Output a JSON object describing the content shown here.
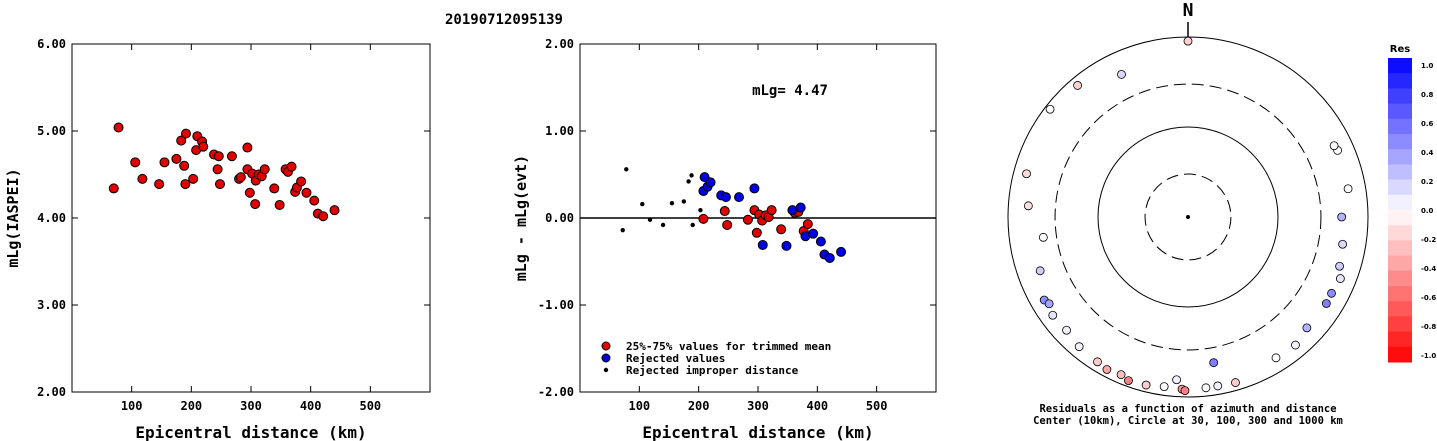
{
  "event_id": "20190712095139",
  "chart_data": [
    {
      "type": "scatter",
      "title": "",
      "xlabel": "Epicentral distance (km)",
      "ylabel": "mLg(IASPEI)",
      "xlim": [
        0,
        600
      ],
      "ylim": [
        2.0,
        6.0
      ],
      "xticks": [
        "100",
        "200",
        "300",
        "400",
        "500"
      ],
      "yticks": [
        "2.00",
        "3.00",
        "4.00",
        "5.00",
        "6.00"
      ],
      "color": "#e00000",
      "points": [
        [
          70,
          4.34
        ],
        [
          78,
          5.04
        ],
        [
          106,
          4.64
        ],
        [
          118,
          4.45
        ],
        [
          146,
          4.39
        ],
        [
          155,
          4.64
        ],
        [
          175,
          4.68
        ],
        [
          183,
          4.89
        ],
        [
          188,
          4.6
        ],
        [
          190,
          4.39
        ],
        [
          191,
          4.97
        ],
        [
          203,
          4.45
        ],
        [
          208,
          4.78
        ],
        [
          210,
          4.94
        ],
        [
          218,
          4.88
        ],
        [
          220,
          4.82
        ],
        [
          238,
          4.73
        ],
        [
          244,
          4.56
        ],
        [
          246,
          4.71
        ],
        [
          248,
          4.39
        ],
        [
          268,
          4.71
        ],
        [
          280,
          4.45
        ],
        [
          283,
          4.47
        ],
        [
          294,
          4.81
        ],
        [
          294,
          4.56
        ],
        [
          298,
          4.29
        ],
        [
          302,
          4.51
        ],
        [
          307,
          4.16
        ],
        [
          308,
          4.43
        ],
        [
          313,
          4.5
        ],
        [
          318,
          4.48
        ],
        [
          323,
          4.56
        ],
        [
          339,
          4.34
        ],
        [
          348,
          4.15
        ],
        [
          358,
          4.56
        ],
        [
          362,
          4.53
        ],
        [
          368,
          4.59
        ],
        [
          374,
          4.3
        ],
        [
          377,
          4.35
        ],
        [
          384,
          4.42
        ],
        [
          393,
          4.29
        ],
        [
          406,
          4.2
        ],
        [
          412,
          4.05
        ],
        [
          421,
          4.02
        ],
        [
          440,
          4.09
        ]
      ]
    },
    {
      "type": "scatter",
      "title": "",
      "xlabel": "Epicentral distance (km)",
      "ylabel": "mLg - mLg(evt)",
      "xlim": [
        0,
        600
      ],
      "ylim": [
        -2.0,
        2.0
      ],
      "xticks": [
        "100",
        "200",
        "300",
        "400",
        "500"
      ],
      "yticks": [
        "-2.00",
        "-1.00",
        "0.00",
        "1.00",
        "2.00"
      ],
      "annotation": "mLg= 4.47",
      "legend": [
        {
          "label": "25%-75% values for trimmed mean",
          "color": "#e00000"
        },
        {
          "label": "Rejected values",
          "color": "#0000e0"
        },
        {
          "label": "Rejected improper distance",
          "color": "#000000"
        }
      ],
      "series": [
        {
          "name": "25%-75% values for trimmed mean",
          "color": "#e00000",
          "size": 5,
          "points": [
            [
              208,
              -0.01
            ],
            [
              244,
              0.08
            ],
            [
              248,
              -0.08
            ],
            [
              283,
              -0.02
            ],
            [
              294,
              0.09
            ],
            [
              298,
              -0.17
            ],
            [
              302,
              0.04
            ],
            [
              307,
              -0.03
            ],
            [
              313,
              0.03
            ],
            [
              318,
              0.01
            ],
            [
              323,
              0.09
            ],
            [
              339,
              -0.13
            ],
            [
              362,
              0.06
            ],
            [
              368,
              0.07
            ],
            [
              377,
              -0.15
            ],
            [
              384,
              -0.07
            ]
          ]
        },
        {
          "name": "Rejected values",
          "color": "#0000e0",
          "size": 5,
          "points": [
            [
              208,
              0.31
            ],
            [
              210,
              0.47
            ],
            [
              215,
              0.36
            ],
            [
              220,
              0.41
            ],
            [
              238,
              0.26
            ],
            [
              246,
              0.24
            ],
            [
              268,
              0.24
            ],
            [
              294,
              0.34
            ],
            [
              308,
              -0.31
            ],
            [
              348,
              -0.32
            ],
            [
              358,
              0.09
            ],
            [
              372,
              0.12
            ],
            [
              380,
              -0.21
            ],
            [
              393,
              -0.18
            ],
            [
              406,
              -0.27
            ],
            [
              412,
              -0.42
            ],
            [
              421,
              -0.46
            ],
            [
              440,
              -0.39
            ]
          ]
        },
        {
          "name": "Rejected improper distance",
          "color": "#000000",
          "size": 2.5,
          "points": [
            [
              72,
              -0.14
            ],
            [
              78,
              0.56
            ],
            [
              105,
              0.16
            ],
            [
              118,
              -0.02
            ],
            [
              140,
              -0.08
            ],
            [
              155,
              0.17
            ],
            [
              175,
              0.19
            ],
            [
              183,
              0.42
            ],
            [
              190,
              -0.08
            ],
            [
              188,
              0.49
            ],
            [
              203,
              0.09
            ]
          ]
        }
      ]
    },
    {
      "type": "scatter",
      "title": "N",
      "subtitle": "Residuals as a function of azimuth and distance",
      "caption": "Center (10km), Circle at 30, 100, 300 and 1000 km",
      "colorbar": {
        "label": "Res",
        "ticks": [
          "1.0",
          "0.8",
          "0.6",
          "0.4",
          "0.2",
          "0.0",
          "-0.2",
          "-0.4",
          "-0.6",
          "-0.8",
          "-1.0"
        ],
        "max_color": "#0000ff",
        "min_color": "#ff0000"
      },
      "stations": [
        {
          "az": 0,
          "dist": 900,
          "res": -0.18
        },
        {
          "az": -40,
          "dist": 810,
          "res": -0.18
        },
        {
          "az": -52,
          "dist": 880,
          "res": 0.0
        },
        {
          "az": -25,
          "dist": 560,
          "res": 0.15
        },
        {
          "az": -75,
          "dist": 720,
          "res": -0.15
        },
        {
          "az": -86,
          "dist": 600,
          "res": -0.12
        },
        {
          "az": -98,
          "dist": 420,
          "res": 0.0
        },
        {
          "az": -110,
          "dist": 560,
          "res": 0.2
        },
        {
          "az": -120,
          "dist": 700,
          "res": 0.45
        },
        {
          "az": -122,
          "dist": 660,
          "res": 0.35
        },
        {
          "az": -126,
          "dist": 720,
          "res": 0.1
        },
        {
          "az": -133,
          "dist": 700,
          "res": 0.05
        },
        {
          "az": -140,
          "dist": 760,
          "res": 0.05
        },
        {
          "az": -148,
          "dist": 790,
          "res": -0.2
        },
        {
          "az": -152,
          "dist": 830,
          "res": -0.35
        },
        {
          "az": -157,
          "dist": 800,
          "res": -0.25
        },
        {
          "az": -160,
          "dist": 860,
          "res": -0.5
        },
        {
          "az": -166,
          "dist": 840,
          "res": -0.2
        },
        {
          "az": -172,
          "dist": 800,
          "res": 0.0
        },
        {
          "az": -176,
          "dist": 650,
          "res": 0.05
        },
        {
          "az": -178,
          "dist": 820,
          "res": -0.4
        },
        {
          "az": -179,
          "dist": 850,
          "res": -0.5
        },
        {
          "az": 174,
          "dist": 810,
          "res": 0.0
        },
        {
          "az": 170,
          "dist": 805,
          "res": 0.05
        },
        {
          "az": 164,
          "dist": 820,
          "res": -0.2
        },
        {
          "az": 148,
          "dist": 700,
          "res": 0.0
        },
        {
          "az": 140,
          "dist": 720,
          "res": 0.05
        },
        {
          "az": 133,
          "dist": 640,
          "res": 0.3
        },
        {
          "az": 122,
          "dist": 650,
          "res": 0.5
        },
        {
          "az": 118,
          "dist": 640,
          "res": 0.45
        },
        {
          "az": 112,
          "dist": 670,
          "res": 0.1
        },
        {
          "az": 108,
          "dist": 590,
          "res": 0.2
        },
        {
          "az": 100,
          "dist": 555,
          "res": 0.15
        },
        {
          "az": 90,
          "dist": 510,
          "res": 0.3
        },
        {
          "az": 80,
          "dist": 640,
          "res": 0.0
        },
        {
          "az": 66,
          "dist": 660,
          "res": 0.0
        },
        {
          "az": 64,
          "dist": 640,
          "res": 0.0
        },
        {
          "az": 170,
          "dist": 440,
          "res": 0.5
        }
      ]
    }
  ]
}
